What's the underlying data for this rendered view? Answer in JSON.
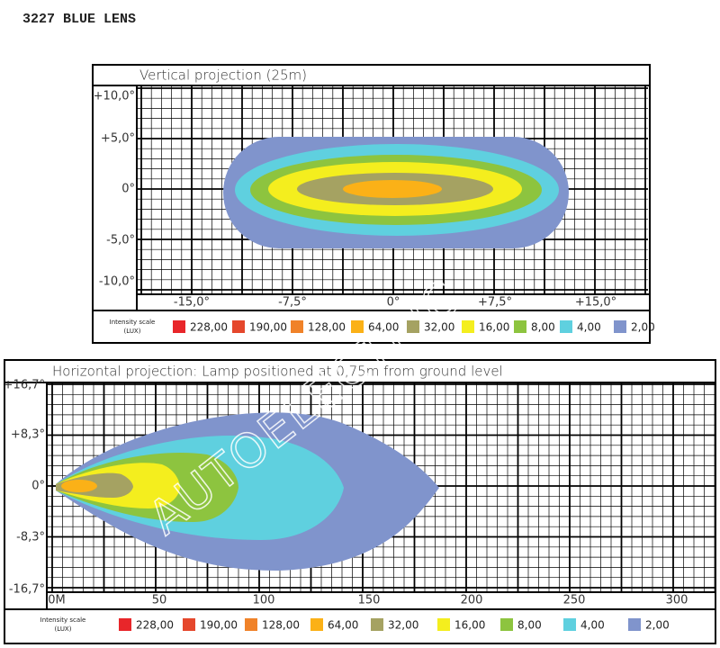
{
  "title": "3227 BLUE LENS",
  "watermark": "AUTOELECTRIC",
  "panels": [
    {
      "title": "Vertical projection (25m)",
      "y_labels": [
        "+10,0°",
        "+5,0°",
        "0°",
        "-5,0°",
        "-10,0°"
      ],
      "x_labels": [
        "-15,0°",
        "-7,5°",
        "0°",
        "+7,5°",
        "+15,0°"
      ],
      "legend_title": [
        "Intensity scale",
        "(LUX)"
      ]
    },
    {
      "title": "Horizontal projection: Lamp positioned at 0,75m from ground level",
      "y_labels": [
        "+16,7°",
        "+8,3°",
        "0°",
        "-8,3°",
        "-16,7°"
      ],
      "x_labels": [
        "0M",
        "50",
        "100",
        "150",
        "200",
        "250",
        "300"
      ],
      "legend_title": [
        "Intensity scale",
        "(LUX)"
      ]
    }
  ],
  "legend": [
    {
      "label": "228,00",
      "color": "#e8262a"
    },
    {
      "label": "190,00",
      "color": "#e5472c"
    },
    {
      "label": "128,00",
      "color": "#f08229"
    },
    {
      "label": "64,00",
      "color": "#fbb117"
    },
    {
      "label": "32,00",
      "color": "#a5a262"
    },
    {
      "label": "16,00",
      "color": "#f4ee1e"
    },
    {
      "label": "8,00",
      "color": "#8dc43f"
    },
    {
      "label": "4,00",
      "color": "#5fd0df"
    },
    {
      "label": "2,00",
      "color": "#8094cc"
    }
  ]
}
